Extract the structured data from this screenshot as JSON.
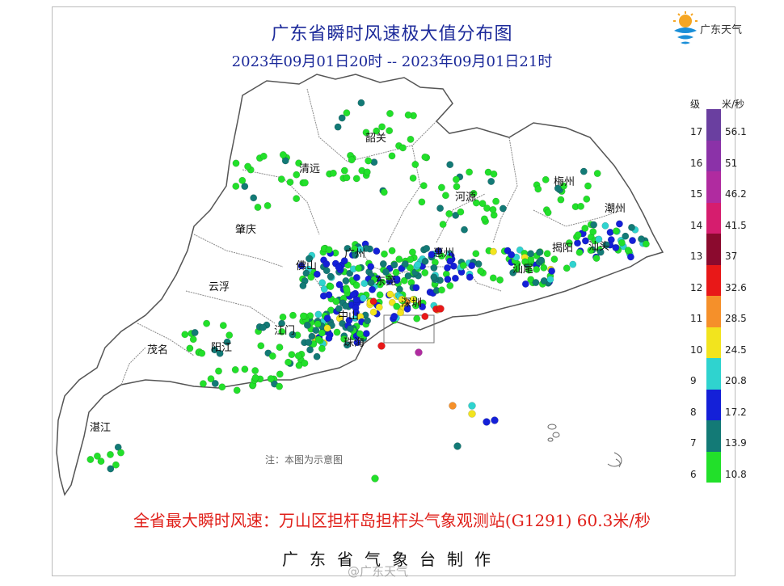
{
  "title": "广东省瞬时风速极大值分布图",
  "subtitle": "2023年09月01日20时 -- 2023年09月01日21时",
  "logo": {
    "text": "广东天气",
    "icon": "sun-cloud-logo"
  },
  "legend": {
    "level_header": "级",
    "unit_header": "米/秒",
    "items": [
      {
        "level": "17",
        "value": "56.1",
        "color": "#6a3fa0"
      },
      {
        "level": "16",
        "value": "51",
        "color": "#8b32a8"
      },
      {
        "level": "15",
        "value": "46.2",
        "color": "#b02ba0"
      },
      {
        "level": "14",
        "value": "41.5",
        "color": "#d61d6e"
      },
      {
        "level": "13",
        "value": "37",
        "color": "#8b0a2e"
      },
      {
        "level": "12",
        "value": "32.6",
        "color": "#e81818"
      },
      {
        "level": "11",
        "value": "28.5",
        "color": "#f5902a"
      },
      {
        "level": "10",
        "value": "24.5",
        "color": "#f2e41e"
      },
      {
        "level": "9",
        "value": "20.8",
        "color": "#2fd3cf"
      },
      {
        "level": "8",
        "value": "17.2",
        "color": "#1420d8"
      },
      {
        "level": "7",
        "value": "13.9",
        "color": "#137a76"
      },
      {
        "level": "6",
        "value": "10.8",
        "color": "#22e02a"
      }
    ]
  },
  "cities": [
    {
      "name": "韶关"
    },
    {
      "name": "清远"
    },
    {
      "name": "梅州"
    },
    {
      "name": "河源"
    },
    {
      "name": "潮州"
    },
    {
      "name": "肇庆"
    },
    {
      "name": "揭阳"
    },
    {
      "name": "汕头"
    },
    {
      "name": "广州"
    },
    {
      "name": "惠州"
    },
    {
      "name": "佛山"
    },
    {
      "name": "云浮"
    },
    {
      "name": "东莞"
    },
    {
      "name": "汕尾"
    },
    {
      "name": "深圳"
    },
    {
      "name": "中山"
    },
    {
      "name": "江门"
    },
    {
      "name": "珠海"
    },
    {
      "name": "茂名"
    },
    {
      "name": "阳江"
    },
    {
      "name": "湛江"
    }
  ],
  "note": "注：本图为示意图",
  "summary": "全省最大瞬时风速：万山区担杆岛担杆头气象观测站(G1291) 60.3米/秒",
  "producer": "广东省气象台制作",
  "watermark": "@广东天气"
}
